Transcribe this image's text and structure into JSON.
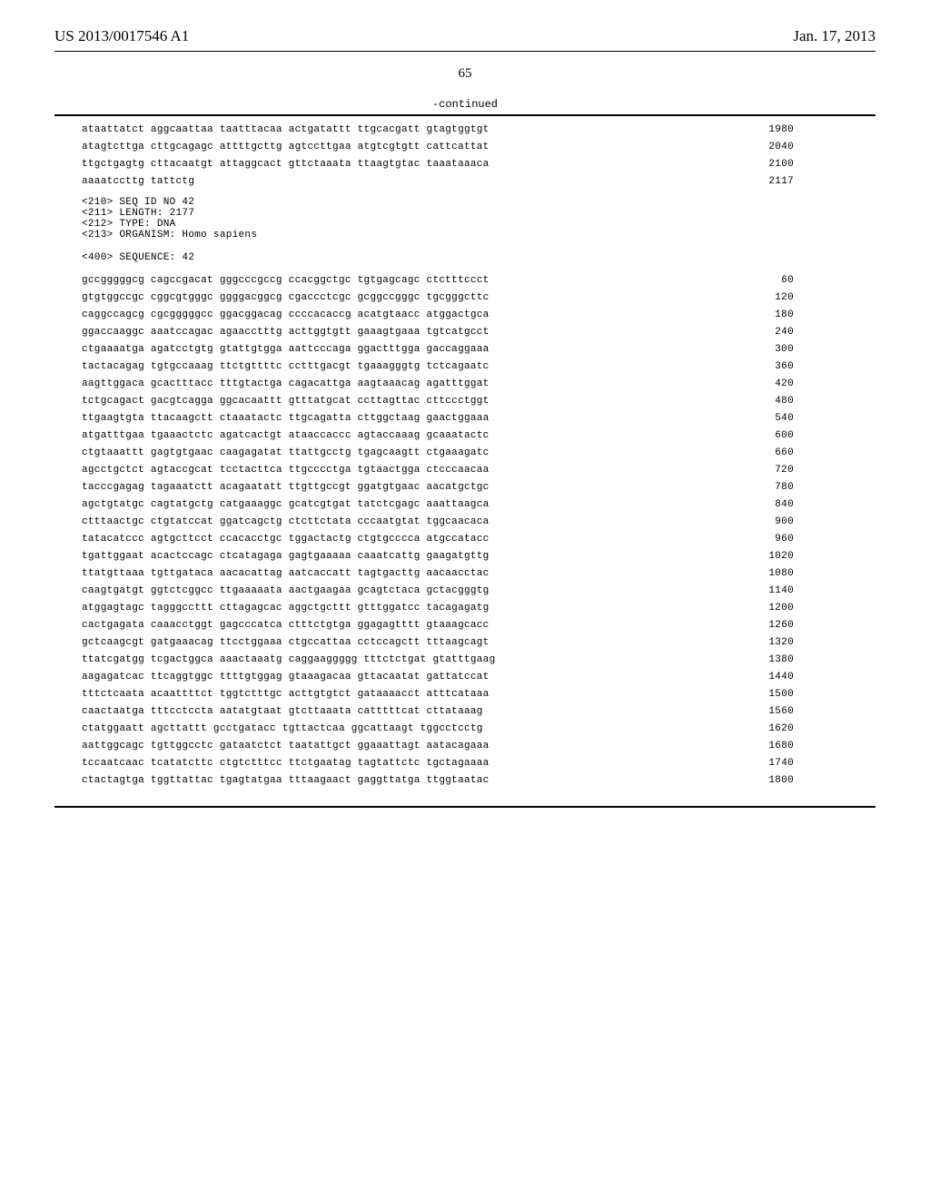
{
  "header": {
    "patent_number": "US 2013/0017546 A1",
    "date": "Jan. 17, 2013"
  },
  "page_number": "65",
  "continued_label": "-continued",
  "seq41_tail": [
    {
      "text": "ataattatct aggcaattaa taatttacaa actgatattt ttgcacgatt gtagtggtgt",
      "num": "1980"
    },
    {
      "text": "atagtcttga cttgcagagc attttgcttg agtccttgaa atgtcgtgtt cattcattat",
      "num": "2040"
    },
    {
      "text": "ttgctgagtg cttacaatgt attaggcact gttctaaata ttaagtgtac taaataaaca",
      "num": "2100"
    },
    {
      "text": "aaaatccttg tattctg",
      "num": "2117"
    }
  ],
  "seq42_meta": {
    "id": "<210> SEQ ID NO 42",
    "length": "<211> LENGTH: 2177",
    "type": "<212> TYPE: DNA",
    "organism": "<213> ORGANISM: Homo sapiens",
    "sequence_label": "<400> SEQUENCE: 42"
  },
  "seq42_lines": [
    {
      "text": "gccgggggcg cagccgacat gggcccgccg ccacggctgc tgtgagcagc ctctttccct",
      "num": "60"
    },
    {
      "text": "gtgtggccgc cggcgtgggc ggggacggcg cgaccctcgc gcggccgggc tgcgggcttc",
      "num": "120"
    },
    {
      "text": "caggccagcg cgcgggggcc ggacggacag ccccacaccg acatgtaacc atggactgca",
      "num": "180"
    },
    {
      "text": "ggaccaaggc aaatccagac agaacctttg acttggtgtt gaaagtgaaa tgtcatgcct",
      "num": "240"
    },
    {
      "text": "ctgaaaatga agatcctgtg gtattgtgga aattcccaga ggactttgga gaccaggaaa",
      "num": "300"
    },
    {
      "text": "tactacagag tgtgccaaag ttctgttttc cctttgacgt tgaaagggtg tctcagaatc",
      "num": "360"
    },
    {
      "text": "aagttggaca gcactttacc tttgtactga cagacattga aagtaaacag agatttggat",
      "num": "420"
    },
    {
      "text": "tctgcagact gacgtcagga ggcacaattt gtttatgcat ccttagttac cttccctggt",
      "num": "480"
    },
    {
      "text": "ttgaagtgta ttacaagctt ctaaatactc ttgcagatta cttggctaag gaactggaaa",
      "num": "540"
    },
    {
      "text": "atgatttgaa tgaaactctc agatcactgt ataaccaccc agtaccaaag gcaaatactc",
      "num": "600"
    },
    {
      "text": "ctgtaaattt gagtgtgaac caagagatat ttattgcctg tgagcaagtt ctgaaagatc",
      "num": "660"
    },
    {
      "text": "agcctgctct agtaccgcat tcctacttca ttgcccctga tgtaactgga ctcccaacaa",
      "num": "720"
    },
    {
      "text": "tacccgagag tagaaatctt acagaatatt ttgttgccgt ggatgtgaac aacatgctgc",
      "num": "780"
    },
    {
      "text": "agctgtatgc cagtatgctg catgaaaggc gcatcgtgat tatctcgagc aaattaagca",
      "num": "840"
    },
    {
      "text": "ctttaactgc ctgtatccat ggatcagctg ctcttctata cccaatgtat tggcaacaca",
      "num": "900"
    },
    {
      "text": "tatacatccc agtgcttcct ccacacctgc tggactactg ctgtgcccca atgccatacc",
      "num": "960"
    },
    {
      "text": "tgattggaat acactccagc ctcatagaga gagtgaaaaa caaatcattg gaagatgttg",
      "num": "1020"
    },
    {
      "text": "ttatgttaaa tgttgataca aacacattag aatcaccatt tagtgacttg aacaacctac",
      "num": "1080"
    },
    {
      "text": "caagtgatgt ggtctcggcc ttgaaaaata aactgaagaa gcagtctaca gctacgggtg",
      "num": "1140"
    },
    {
      "text": "atggagtagc tagggccttt cttagagcac aggctgcttt gtttggatcc tacagagatg",
      "num": "1200"
    },
    {
      "text": "cactgagata caaacctggt gagcccatca ctttctgtga ggagagtttt gtaaagcacc",
      "num": "1260"
    },
    {
      "text": "gctcaagcgt gatgaaacag ttcctggaaa ctgccattaa cctccagctt tttaagcagt",
      "num": "1320"
    },
    {
      "text": "ttatcgatgg tcgactggca aaactaaatg caggaaggggg tttctctgat gtatttgaag",
      "num": "1380"
    },
    {
      "text": "aagagatcac ttcaggtggc ttttgtggag gtaaagacaa gttacaatat gattatccat",
      "num": "1440"
    },
    {
      "text": "tttctcaata acaattttct tggtctttgc acttgtgtct gataaaacct atttcataaa",
      "num": "1500"
    },
    {
      "text": "caactaatga tttcctccta aatatgtaat gtcttaaata catttttcat cttataaag",
      "num": "1560"
    },
    {
      "text": "ctatggaatt agcttattt gcctgatacc tgttactcaa ggcattaagt tggcctcctg",
      "num": "1620"
    },
    {
      "text": "aattggcagc tgttggcctc gataatctct taatattgct ggaaattagt aatacagaaa",
      "num": "1680"
    },
    {
      "text": "tccaatcaac tcatatcttc ctgtctttcc ttctgaatag tagtattctc tgctagaaaa",
      "num": "1740"
    },
    {
      "text": "ctactagtga tggttattac tgagtatgaa tttaagaact gaggttatga ttggtaatac",
      "num": "1800"
    }
  ]
}
